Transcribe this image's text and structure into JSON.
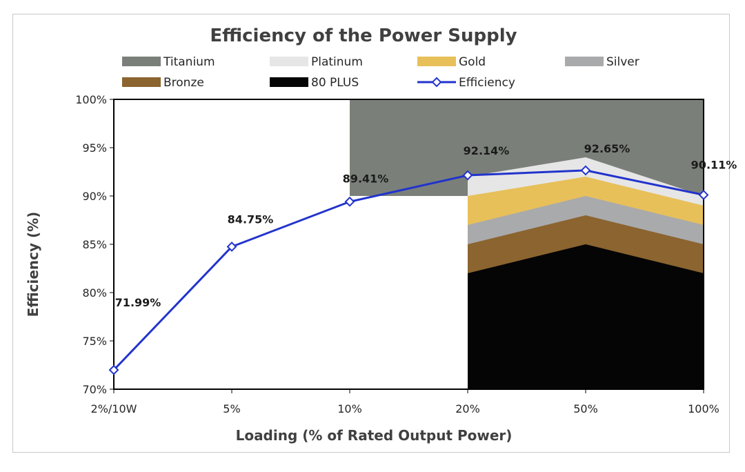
{
  "chart_data": {
    "type": "line",
    "title": "Efficiency of the Power Supply",
    "xlabel": "Loading (% of Rated Output Power)",
    "ylabel": "Efficiency (%)",
    "categories": [
      "2%/10W",
      "5%",
      "10%",
      "20%",
      "50%",
      "100%"
    ],
    "ylim": [
      70,
      100
    ],
    "yticks": [
      "70%",
      "75%",
      "80%",
      "85%",
      "90%",
      "95%",
      "100%"
    ],
    "grid": false,
    "legend_placement": "top",
    "series": [
      {
        "name": "Efficiency",
        "values": [
          71.99,
          84.75,
          89.41,
          92.14,
          92.65,
          90.11
        ],
        "labels": [
          "71.99%",
          "84.75%",
          "89.41%",
          "92.14%",
          "92.65%",
          "90.11%"
        ],
        "color": "#2233cc"
      }
    ],
    "bands": [
      {
        "name": "Titanium",
        "color": "#7a8079",
        "x": [
          "10%",
          "20%",
          "50%",
          "100%"
        ],
        "values": [
          100,
          100,
          100,
          100
        ]
      },
      {
        "name": "Platinum",
        "color": "#e6e6e6",
        "x": [
          "20%",
          "50%",
          "100%"
        ],
        "values": [
          92,
          94,
          90
        ]
      },
      {
        "name": "Gold",
        "color": "#e8c05a",
        "x": [
          "20%",
          "50%",
          "100%"
        ],
        "values": [
          90,
          92,
          89
        ]
      },
      {
        "name": "Silver",
        "color": "#a9aaac",
        "x": [
          "20%",
          "50%",
          "100%"
        ],
        "values": [
          87,
          90,
          87
        ]
      },
      {
        "name": "Bronze",
        "color": "#8b6430",
        "x": [
          "20%",
          "50%",
          "100%"
        ],
        "values": [
          85,
          88,
          85
        ]
      },
      {
        "name": "80 PLUS",
        "color": "#050505",
        "x": [
          "20%",
          "50%",
          "100%"
        ],
        "values": [
          82,
          85,
          82
        ]
      }
    ],
    "legend": [
      "Titanium",
      "Platinum",
      "Gold",
      "Silver",
      "Bronze",
      "80 PLUS",
      "Efficiency"
    ]
  }
}
